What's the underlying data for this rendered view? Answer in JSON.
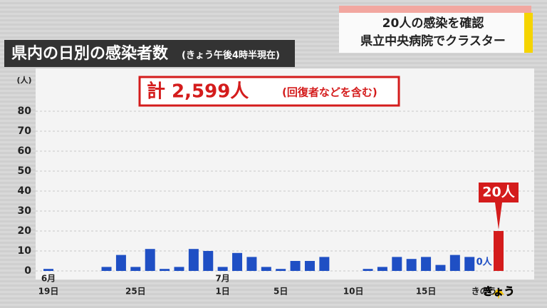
{
  "chart_data": {
    "type": "bar",
    "headline": [
      "20人の感染を確認",
      "県立中央病院でクラスター"
    ],
    "title": "県内の日別の感染者数",
    "subtitle": "(きょう午後4時半現在)",
    "total": "計 2,599人",
    "total_note": "(回復者などを含む)",
    "y_unit": "(人)",
    "categories": [
      "19日",
      null,
      null,
      null,
      null,
      null,
      "25日",
      null,
      null,
      null,
      null,
      null,
      "1日",
      null,
      null,
      null,
      "5日",
      null,
      null,
      null,
      null,
      "10日",
      null,
      null,
      null,
      null,
      "15日",
      null,
      null,
      null,
      "きのう",
      "きょう"
    ],
    "month_labels": [
      "6月",
      null,
      null,
      null,
      null,
      null,
      null,
      null,
      null,
      null,
      null,
      null,
      "7月",
      null,
      null,
      null,
      null,
      null,
      null,
      null,
      null,
      null,
      null,
      null,
      null,
      null,
      null,
      null,
      null,
      null,
      null,
      null
    ],
    "values": [
      1,
      0,
      0,
      0,
      2,
      8,
      2,
      11,
      1,
      2,
      11,
      10,
      2,
      9,
      7,
      2,
      1,
      5,
      5,
      7,
      0,
      0,
      1,
      2,
      7,
      6,
      7,
      3,
      8,
      7,
      0,
      20
    ],
    "value_labels": [
      null,
      null,
      null,
      null,
      null,
      null,
      null,
      null,
      null,
      null,
      null,
      null,
      null,
      null,
      null,
      null,
      null,
      null,
      null,
      null,
      null,
      null,
      null,
      null,
      null,
      null,
      null,
      null,
      null,
      null,
      "0人",
      "20人"
    ],
    "colors": [
      "#1f4fc4",
      "#d41c1c"
    ],
    "ylim": [
      0,
      100
    ],
    "yticks": [
      0,
      10,
      20,
      30,
      40,
      50,
      60,
      70,
      80
    ],
    "grid": true
  }
}
